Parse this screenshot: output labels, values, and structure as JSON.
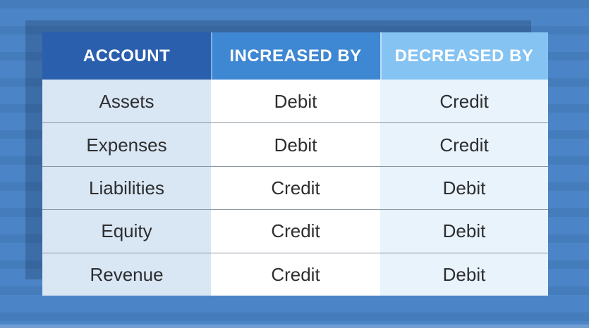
{
  "chart_data": {
    "type": "table",
    "title": "",
    "columns": [
      "ACCOUNT",
      "INCREASED BY",
      "DECREASED BY"
    ],
    "rows": [
      [
        "Assets",
        "Debit",
        "Credit"
      ],
      [
        "Expenses",
        "Debit",
        "Credit"
      ],
      [
        "Liabilities",
        "Credit",
        "Debit"
      ],
      [
        "Equity",
        "Credit",
        "Debit"
      ],
      [
        "Revenue",
        "Credit",
        "Debit"
      ]
    ]
  },
  "colors": {
    "background": "#4b85c7",
    "header_account_bg": "#2a5fae",
    "header_increased_bg": "#3e87d2",
    "header_decreased_bg": "#85c3f3",
    "col_account_bg": "#d9e6f4",
    "col_increased_bg": "#ffffff",
    "col_decreased_bg": "#e8f3fc",
    "header_text": "#ffffff",
    "body_text": "#2d2e30",
    "row_divider": "#8b95a1"
  }
}
